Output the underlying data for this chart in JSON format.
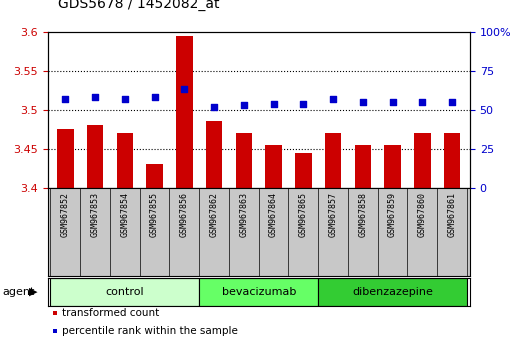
{
  "title": "GDS5678 / 1452082_at",
  "samples": [
    "GSM967852",
    "GSM967853",
    "GSM967854",
    "GSM967855",
    "GSM967856",
    "GSM967862",
    "GSM967863",
    "GSM967864",
    "GSM967865",
    "GSM967857",
    "GSM967858",
    "GSM967859",
    "GSM967860",
    "GSM967861"
  ],
  "bar_values": [
    3.475,
    3.48,
    3.47,
    3.43,
    3.595,
    3.485,
    3.47,
    3.455,
    3.445,
    3.47,
    3.455,
    3.455,
    3.47,
    3.47
  ],
  "percentile_values": [
    57,
    58,
    57,
    58,
    63,
    52,
    53,
    54,
    54,
    57,
    55,
    55,
    55,
    55
  ],
  "ylim_left": [
    3.4,
    3.6
  ],
  "ylim_right": [
    0,
    100
  ],
  "yticks_left": [
    3.4,
    3.45,
    3.5,
    3.55,
    3.6
  ],
  "yticks_right": [
    0,
    25,
    50,
    75,
    100
  ],
  "ytick_labels_right": [
    "0",
    "25",
    "50",
    "75",
    "100%"
  ],
  "bar_color": "#cc0000",
  "dot_color": "#0000cc",
  "groups": [
    {
      "label": "control",
      "start": 0,
      "end": 5,
      "color": "#ccffcc"
    },
    {
      "label": "bevacizumab",
      "start": 5,
      "end": 9,
      "color": "#66ff66"
    },
    {
      "label": "dibenzazepine",
      "start": 9,
      "end": 14,
      "color": "#33cc33"
    }
  ],
  "legend_bar_label": "transformed count",
  "legend_dot_label": "percentile rank within the sample",
  "agent_label": "agent",
  "bar_bottom": 3.4,
  "tick_label_color_left": "#cc0000",
  "tick_label_color_right": "#0000cc",
  "sample_bg_color": "#c8c8c8",
  "plot_bg_color": "#ffffff"
}
